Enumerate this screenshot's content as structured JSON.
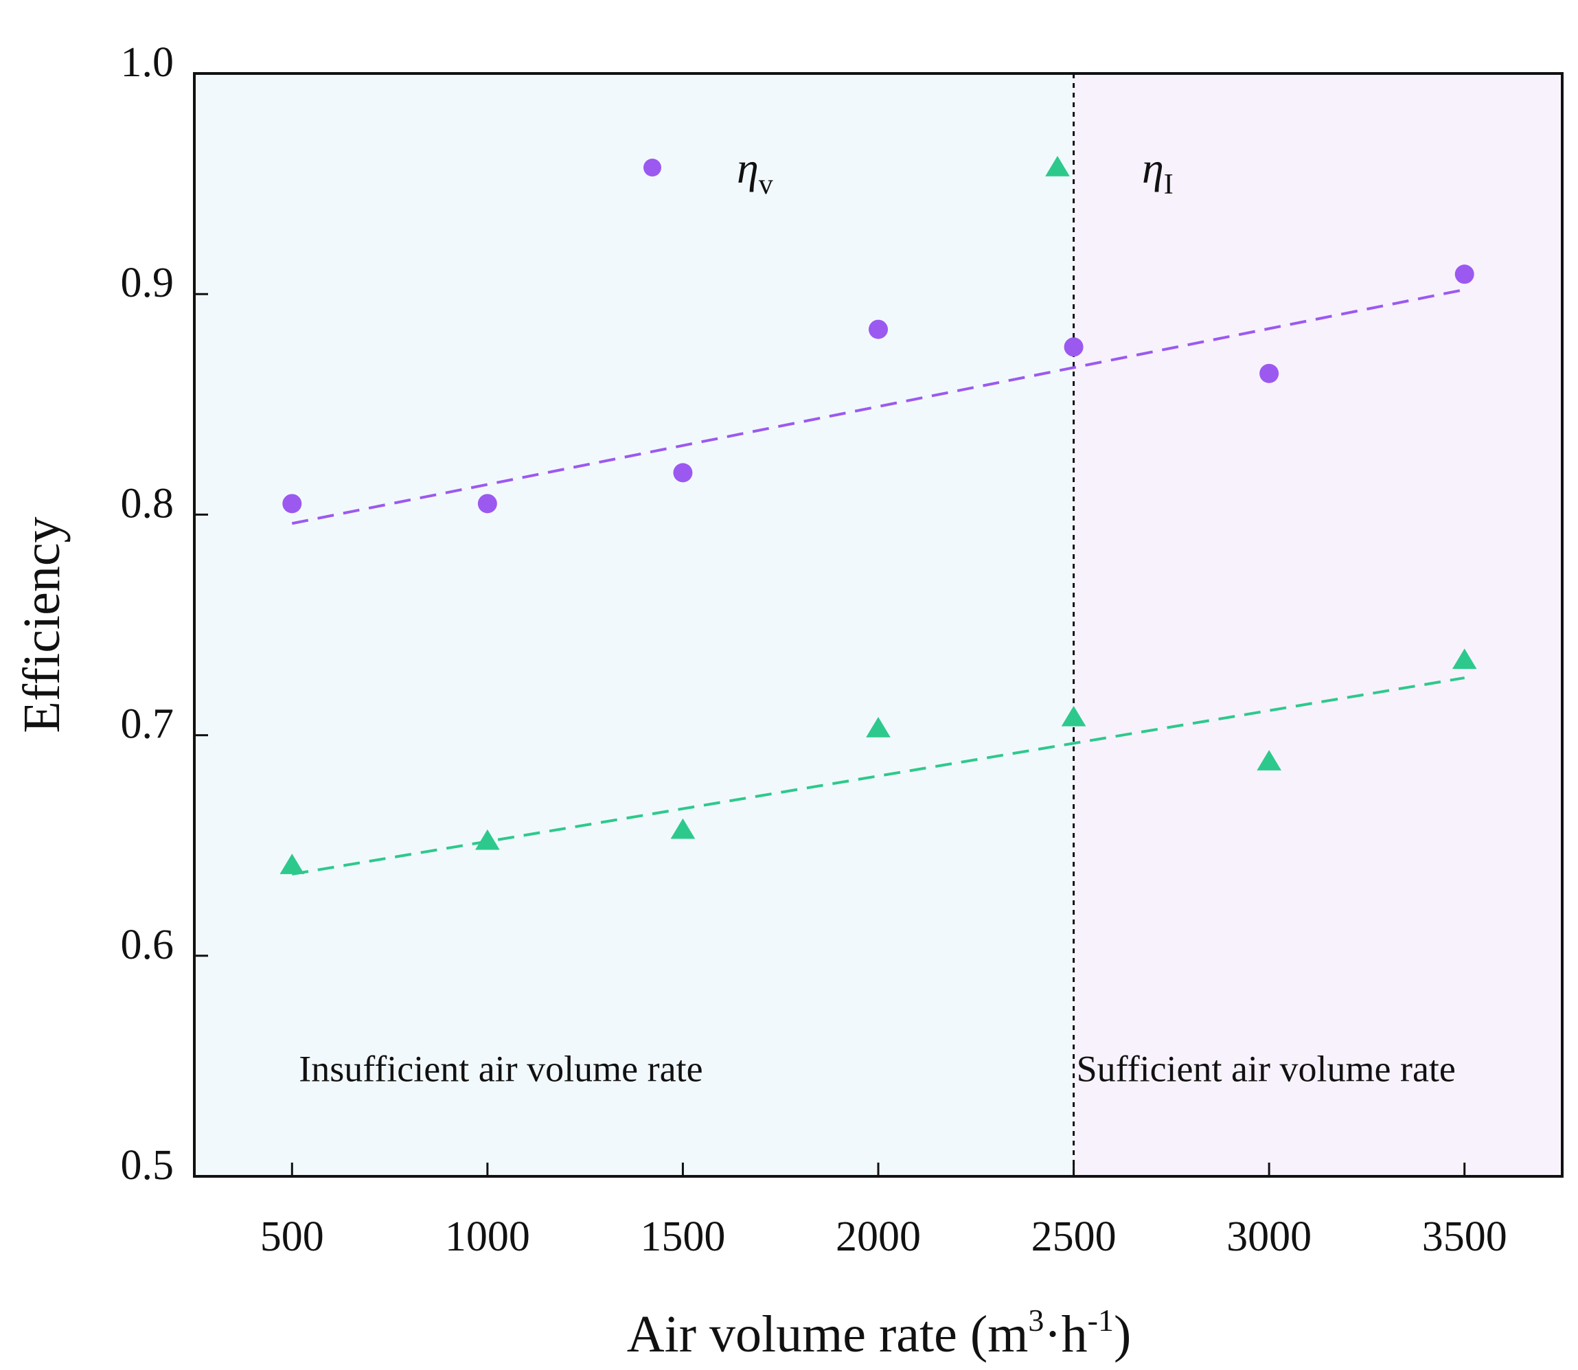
{
  "chart_data": {
    "type": "scatter",
    "title": "",
    "xlabel": "Air volume rate (m³·h⁻¹)",
    "xlabel_parts": {
      "main": "Air volume rate (m",
      "sup1": "3",
      "mid": "·h",
      "sup2": "-1",
      "end": ")"
    },
    "ylabel": "Efficiency",
    "xlim": [
      250,
      3750
    ],
    "ylim": [
      0.5,
      1.0
    ],
    "x_ticks": [
      500,
      1000,
      1500,
      2000,
      2500,
      3000,
      3500
    ],
    "x_tick_labels": [
      "500",
      "1000",
      "1500",
      "2000",
      "2500",
      "3000",
      "3500"
    ],
    "y_ticks": [
      0.5,
      0.6,
      0.7,
      0.8,
      0.9,
      1.0
    ],
    "y_tick_labels": [
      "0.5",
      "0.6",
      "0.7",
      "0.8",
      "0.9",
      "1.0"
    ],
    "x": [
      500,
      1000,
      1500,
      2000,
      2500,
      3000,
      3500
    ],
    "series": [
      {
        "name": "ηv",
        "symbol": "η",
        "subscript": "v",
        "marker": "circle",
        "color": "#9B59F0",
        "values": [
          0.805,
          0.805,
          0.819,
          0.884,
          0.876,
          0.864,
          0.909
        ],
        "trend": {
          "x": [
            500,
            3500
          ],
          "y": [
            0.796,
            0.902
          ]
        }
      },
      {
        "name": "ηI",
        "symbol": "η",
        "subscript": "I",
        "marker": "triangle",
        "color": "#2DC98C",
        "values": [
          0.641,
          0.652,
          0.657,
          0.703,
          0.708,
          0.688,
          0.734
        ],
        "trend": {
          "x": [
            500,
            3500
          ],
          "y": [
            0.637,
            0.726
          ]
        }
      }
    ],
    "threshold_x": 2500,
    "regions": [
      {
        "label": "Insufficient air volume rate",
        "from": 250,
        "to": 2500,
        "color": "#F2F9FC"
      },
      {
        "label": "Sufficient air volume rate",
        "from": 2500,
        "to": 3750,
        "color": "#F8F2FC"
      }
    ],
    "legend_placement": "top"
  }
}
